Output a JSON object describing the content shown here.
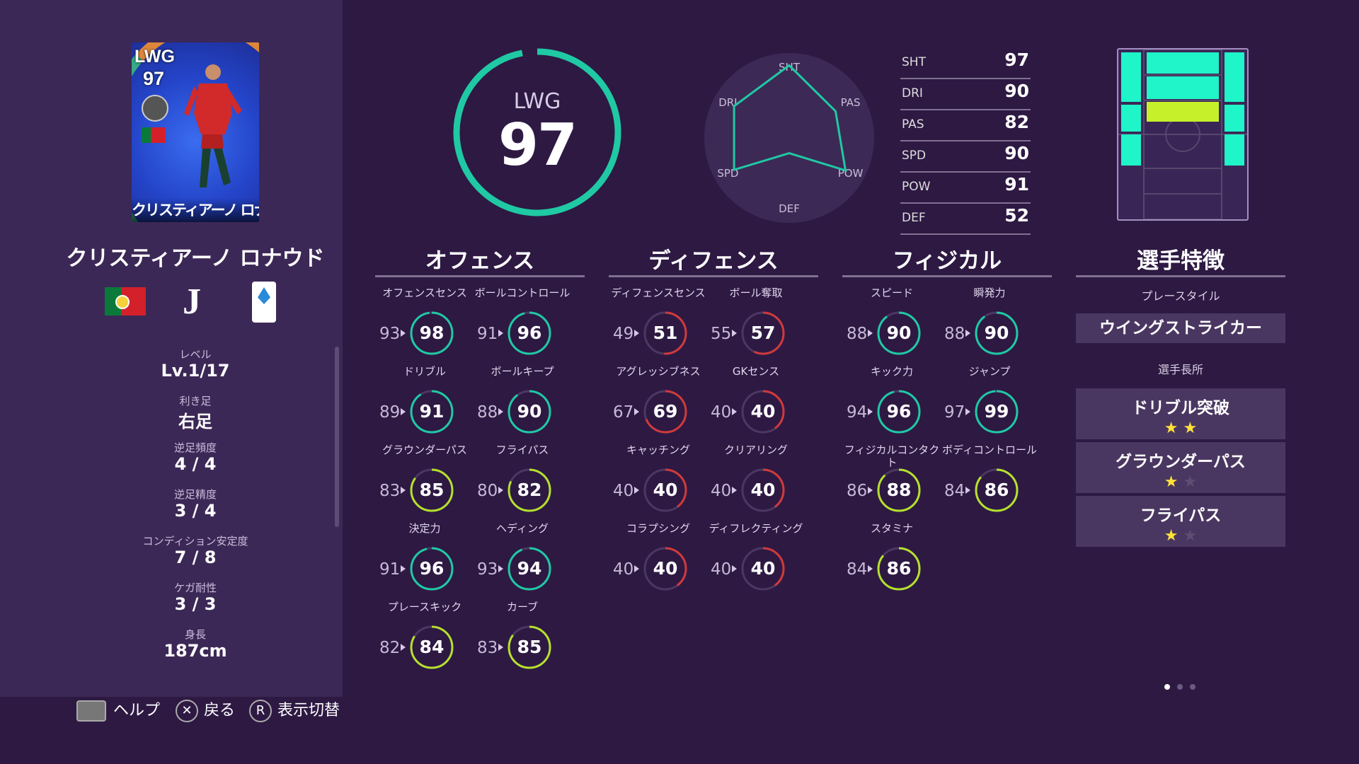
{
  "player": {
    "card_position": "LWG",
    "card_rating": "97",
    "card_name": "クリスティアーノ ロナウド",
    "name": "クリスティアーノ ロナウド",
    "club_logo": "juventus-logo",
    "league_logo": "serie-a-logo",
    "nation_flag": "portugal-flag"
  },
  "info": [
    {
      "label": "レベル",
      "value": "Lv.1/17"
    },
    {
      "label": "利き足",
      "value": "右足"
    },
    {
      "label": "逆足頻度",
      "value": "4 / 4"
    },
    {
      "label": "逆足精度",
      "value": "3 / 4"
    },
    {
      "label": "コンディション安定度",
      "value": "7 / 8"
    },
    {
      "label": "ケガ耐性",
      "value": "3 / 3"
    },
    {
      "label": "身長",
      "value": "187cm"
    }
  ],
  "overall": {
    "position": "LWG",
    "rating": "97",
    "gauge_fraction": 0.97,
    "ring_color": "#1fc9a4"
  },
  "radar": {
    "axes": [
      "SHT",
      "PAS",
      "POW",
      "DEF",
      "SPD",
      "DRI"
    ],
    "values": [
      97,
      82,
      91,
      52,
      90,
      90
    ],
    "line_color": "#1fc9a4"
  },
  "stats": [
    {
      "key": "SHT",
      "value": "97"
    },
    {
      "key": "DRI",
      "value": "90"
    },
    {
      "key": "PAS",
      "value": "82"
    },
    {
      "key": "SPD",
      "value": "90"
    },
    {
      "key": "POW",
      "value": "91"
    },
    {
      "key": "DEF",
      "value": "52"
    }
  ],
  "sections": {
    "offense": "オフェンス",
    "defense": "ディフェンス",
    "physical": "フィジカル",
    "traits": "選手特徴"
  },
  "offense": [
    {
      "label": "オフェンスセンス",
      "prev": "93",
      "cur": "98"
    },
    {
      "label": "ボールコントロール",
      "prev": "91",
      "cur": "96"
    },
    {
      "label": "ドリブル",
      "prev": "89",
      "cur": "91"
    },
    {
      "label": "ボールキープ",
      "prev": "88",
      "cur": "90"
    },
    {
      "label": "グラウンダーパス",
      "prev": "83",
      "cur": "85"
    },
    {
      "label": "フライパス",
      "prev": "80",
      "cur": "82"
    },
    {
      "label": "決定力",
      "prev": "91",
      "cur": "96"
    },
    {
      "label": "ヘディング",
      "prev": "93",
      "cur": "94"
    },
    {
      "label": "プレースキック",
      "prev": "82",
      "cur": "84"
    },
    {
      "label": "カーブ",
      "prev": "83",
      "cur": "85"
    }
  ],
  "defense": [
    {
      "label": "ディフェンスセンス",
      "prev": "49",
      "cur": "51"
    },
    {
      "label": "ボール奪取",
      "prev": "55",
      "cur": "57"
    },
    {
      "label": "アグレッシブネス",
      "prev": "67",
      "cur": "69"
    },
    {
      "label": "GKセンス",
      "prev": "40",
      "cur": "40"
    },
    {
      "label": "キャッチング",
      "prev": "40",
      "cur": "40"
    },
    {
      "label": "クリアリング",
      "prev": "40",
      "cur": "40"
    },
    {
      "label": "コラプシング",
      "prev": "40",
      "cur": "40"
    },
    {
      "label": "ディフレクティング",
      "prev": "40",
      "cur": "40"
    }
  ],
  "physical": [
    {
      "label": "スピード",
      "prev": "88",
      "cur": "90"
    },
    {
      "label": "瞬発力",
      "prev": "88",
      "cur": "90"
    },
    {
      "label": "キック力",
      "prev": "94",
      "cur": "96"
    },
    {
      "label": "ジャンプ",
      "prev": "97",
      "cur": "99"
    },
    {
      "label": "フィジカルコンタクト",
      "prev": "86",
      "cur": "88"
    },
    {
      "label": "ボディコントロール",
      "prev": "84",
      "cur": "86"
    },
    {
      "label": "スタミナ",
      "prev": "84",
      "cur": "86"
    }
  ],
  "traits": {
    "playstyle_label": "プレースタイル",
    "playstyle": "ウイングストライカー",
    "skills_label": "選手長所",
    "skills": [
      {
        "name": "ドリブル突破",
        "stars": 2,
        "max": 2
      },
      {
        "name": "グラウンダーパス",
        "stars": 1,
        "max": 2
      },
      {
        "name": "フライパス",
        "stars": 1,
        "max": 2
      }
    ]
  },
  "bottom": {
    "help": "ヘルプ",
    "back": "戻る",
    "toggle": "表示切替",
    "r_key": "R"
  },
  "colors": {
    "teal": "#1fc9a4",
    "lime": "#b5e12c",
    "orange": "#f0a020",
    "red": "#d03a3a",
    "bg": "#2e1943",
    "panel": "#3c2856"
  }
}
